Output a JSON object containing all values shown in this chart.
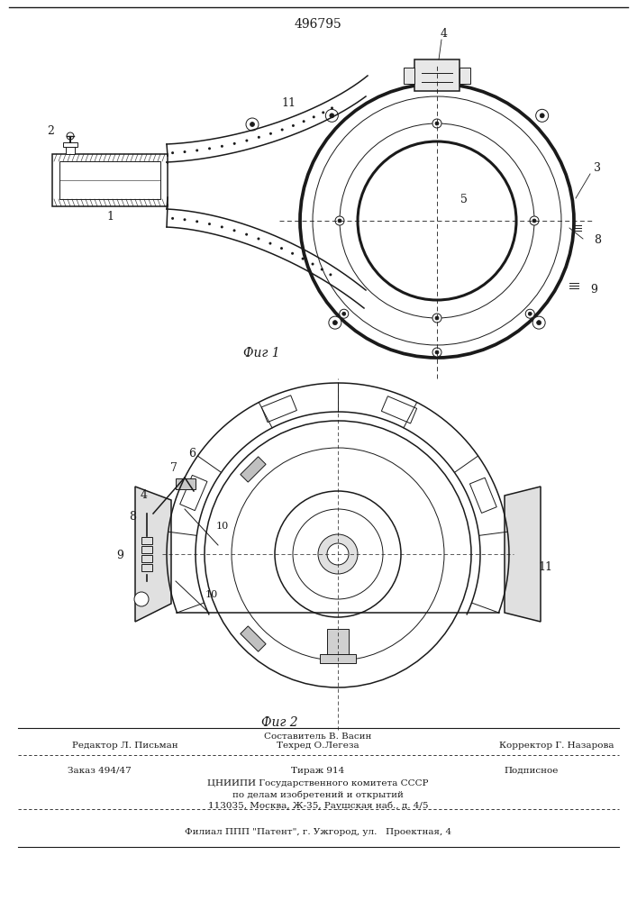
{
  "patent_number": "496795",
  "fig1_label": "Фиг 1",
  "fig2_label": "Фиг 2",
  "editor_line": "Редактор Л. Письман",
  "composer_line": "Составитель В. Васин",
  "tech_line": "Техред О.Легеза",
  "corrector_line": "Корректор Г. Назарова",
  "order_line": "Заказ 494/47",
  "tirazh_line": "Тираж 914",
  "podpisnoe_line": "Подписное",
  "org_line1": "ЦНИИПИ Государственного комитета СССР",
  "org_line2": "по делам изобретений и открытий",
  "org_line3": "113035, Москва, Ж-35, Раушская наб., д. 4/5",
  "filial_line": "Филиал ППП \"Патент\", г. Ужгород, ул.   Проектная, 4",
  "bg_color": "#ffffff",
  "line_color": "#1a1a1a"
}
